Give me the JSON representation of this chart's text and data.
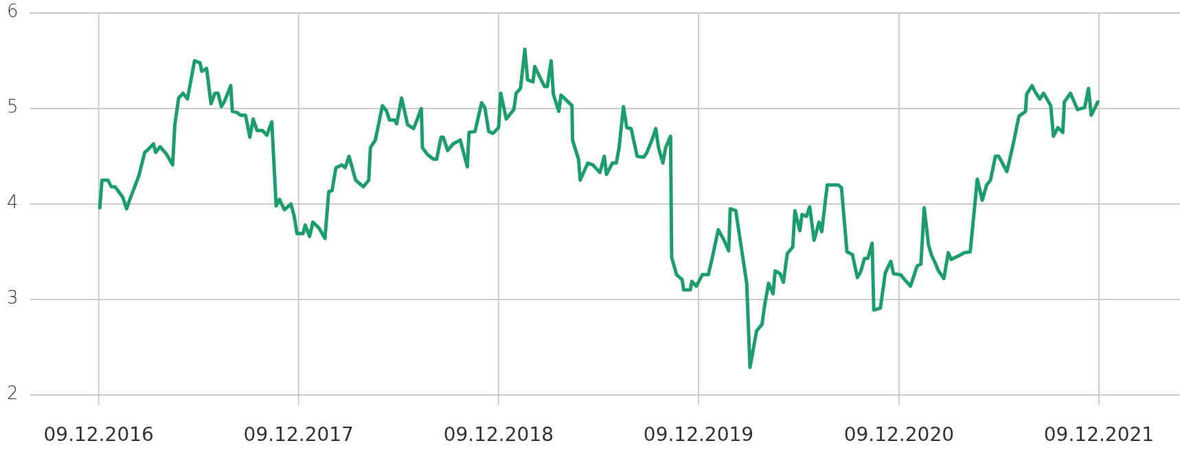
{
  "chart_data": {
    "type": "line",
    "grid": true,
    "marker": "none",
    "line_style": "solid",
    "xlim": [
      "2016-08-06",
      "2022-05-06"
    ],
    "xticks": [
      {
        "value": "2016-12-09",
        "label": "09.12.2016"
      },
      {
        "value": "2017-12-09",
        "label": "09.12.2017"
      },
      {
        "value": "2018-12-09",
        "label": "09.12.2018"
      },
      {
        "value": "2019-12-09",
        "label": "09.12.2019"
      },
      {
        "value": "2020-12-09",
        "label": "09.12.2020"
      },
      {
        "value": "2021-12-09",
        "label": "09.12.2021"
      }
    ],
    "ylim": [
      2,
      6
    ],
    "yticks": [
      2,
      3,
      4,
      5,
      6
    ],
    "series": [
      {
        "color": "#1c9e6c",
        "x": [
          "2016-12-11",
          "2016-12-15",
          "2016-12-26",
          "2017-01-01",
          "2017-01-08",
          "2017-01-22",
          "2017-01-29",
          "2017-02-04",
          "2017-02-20",
          "2017-03-03",
          "2017-03-09",
          "2017-03-19",
          "2017-03-23",
          "2017-03-31",
          "2017-04-12",
          "2017-04-23",
          "2017-04-27",
          "2017-05-04",
          "2017-05-12",
          "2017-05-20",
          "2017-06-02",
          "2017-06-12",
          "2017-06-15",
          "2017-06-24",
          "2017-07-02",
          "2017-07-09",
          "2017-07-15",
          "2017-07-21",
          "2017-07-27",
          "2017-08-07",
          "2017-08-10",
          "2017-08-18",
          "2017-08-25",
          "2017-09-03",
          "2017-09-11",
          "2017-09-17",
          "2017-09-24",
          "2017-10-04",
          "2017-10-12",
          "2017-10-21",
          "2017-10-29",
          "2017-11-04",
          "2017-11-13",
          "2017-11-25",
          "2017-12-01",
          "2017-12-06",
          "2017-12-17",
          "2017-12-21",
          "2017-12-29",
          "2018-01-04",
          "2018-01-15",
          "2018-01-26",
          "2018-02-02",
          "2018-02-08",
          "2018-02-15",
          "2018-02-26",
          "2018-03-04",
          "2018-03-11",
          "2018-03-23",
          "2018-04-06",
          "2018-04-16",
          "2018-04-19",
          "2018-04-28",
          "2018-05-11",
          "2018-05-18",
          "2018-05-24",
          "2018-06-02",
          "2018-06-06",
          "2018-06-15",
          "2018-06-26",
          "2018-07-07",
          "2018-07-21",
          "2018-07-23",
          "2018-08-01",
          "2018-08-12",
          "2018-08-18",
          "2018-08-26",
          "2018-08-30",
          "2018-09-07",
          "2018-09-17",
          "2018-09-30",
          "2018-10-13",
          "2018-10-16",
          "2018-10-27",
          "2018-11-08",
          "2018-11-14",
          "2018-11-21",
          "2018-11-29",
          "2018-12-09",
          "2018-12-13",
          "2018-12-23",
          "2019-01-06",
          "2019-01-10",
          "2019-01-18",
          "2019-01-26",
          "2019-01-31",
          "2019-02-10",
          "2019-02-13",
          "2019-03-03",
          "2019-03-08",
          "2019-03-15",
          "2019-03-19",
          "2019-03-29",
          "2019-04-02",
          "2019-04-13",
          "2019-04-22",
          "2019-04-23",
          "2019-05-04",
          "2019-05-07",
          "2019-05-21",
          "2019-05-30",
          "2019-06-12",
          "2019-06-20",
          "2019-06-24",
          "2019-07-05",
          "2019-07-12",
          "2019-07-17",
          "2019-07-25",
          "2019-07-31",
          "2019-08-08",
          "2019-08-19",
          "2019-08-31",
          "2019-09-05",
          "2019-09-15",
          "2019-09-22",
          "2019-09-27",
          "2019-10-05",
          "2019-10-10",
          "2019-10-19",
          "2019-10-21",
          "2019-10-30",
          "2019-11-09",
          "2019-11-12",
          "2019-11-24",
          "2019-11-27",
          "2019-12-05",
          "2019-12-16",
          "2019-12-27",
          "2020-01-04",
          "2020-01-14",
          "2020-01-24",
          "2020-02-02",
          "2020-02-05",
          "2020-02-15",
          "2020-03-06",
          "2020-03-12",
          "2020-03-24",
          "2020-04-03",
          "2020-04-08",
          "2020-04-15",
          "2020-04-23",
          "2020-04-27",
          "2020-05-06",
          "2020-05-12",
          "2020-05-19",
          "2020-05-29",
          "2020-06-02",
          "2020-06-11",
          "2020-06-15",
          "2020-06-23",
          "2020-06-29",
          "2020-07-07",
          "2020-07-16",
          "2020-07-21",
          "2020-07-31",
          "2020-08-20",
          "2020-08-26",
          "2020-09-05",
          "2020-09-15",
          "2020-09-24",
          "2020-09-30",
          "2020-10-07",
          "2020-10-13",
          "2020-10-21",
          "2020-10-24",
          "2020-11-05",
          "2020-11-14",
          "2020-11-24",
          "2020-11-29",
          "2020-12-12",
          "2020-12-19",
          "2020-12-30",
          "2021-01-11",
          "2021-01-18",
          "2021-01-24",
          "2021-02-01",
          "2021-02-06",
          "2021-02-14",
          "2021-02-19",
          "2021-03-01",
          "2021-03-09",
          "2021-03-14",
          "2021-03-29",
          "2021-04-07",
          "2021-04-18",
          "2021-05-01",
          "2021-05-10",
          "2021-05-18",
          "2021-05-25",
          "2021-06-03",
          "2021-06-09",
          "2021-06-24",
          "2021-07-06",
          "2021-07-16",
          "2021-07-28",
          "2021-07-30",
          "2021-08-09",
          "2021-08-14",
          "2021-08-23",
          "2021-08-30",
          "2021-09-12",
          "2021-09-17",
          "2021-09-25",
          "2021-10-04",
          "2021-10-07",
          "2021-10-18",
          "2021-10-31",
          "2021-11-13",
          "2021-11-20",
          "2021-11-25",
          "2021-12-07"
        ],
        "values": [
          3.96,
          4.25,
          4.25,
          4.18,
          4.18,
          4.07,
          3.95,
          4.05,
          4.29,
          4.54,
          4.57,
          4.63,
          4.54,
          4.6,
          4.52,
          4.41,
          4.83,
          5.11,
          5.16,
          5.1,
          5.5,
          5.48,
          5.39,
          5.42,
          5.05,
          5.16,
          5.16,
          5.02,
          5.08,
          5.24,
          4.97,
          4.96,
          4.93,
          4.93,
          4.7,
          4.89,
          4.77,
          4.77,
          4.72,
          4.86,
          3.98,
          4.05,
          3.94,
          4.0,
          3.87,
          3.69,
          3.69,
          3.78,
          3.66,
          3.81,
          3.75,
          3.64,
          4.13,
          4.14,
          4.38,
          4.41,
          4.38,
          4.5,
          4.25,
          4.18,
          4.25,
          4.59,
          4.67,
          5.03,
          4.98,
          4.88,
          4.88,
          4.84,
          5.11,
          4.83,
          4.79,
          5.0,
          4.59,
          4.52,
          4.47,
          4.47,
          4.7,
          4.7,
          4.56,
          4.63,
          4.67,
          4.39,
          4.75,
          4.76,
          5.06,
          5.01,
          4.76,
          4.74,
          4.8,
          5.16,
          4.89,
          4.99,
          5.16,
          5.21,
          5.62,
          5.3,
          5.28,
          5.44,
          5.23,
          5.23,
          5.5,
          5.15,
          4.97,
          5.14,
          5.08,
          5.03,
          4.67,
          4.47,
          4.25,
          4.43,
          4.41,
          4.33,
          4.5,
          4.31,
          4.43,
          4.43,
          4.59,
          5.02,
          4.8,
          4.79,
          4.5,
          4.49,
          4.53,
          4.67,
          4.79,
          4.59,
          4.43,
          4.59,
          4.71,
          3.44,
          3.26,
          3.21,
          3.1,
          3.1,
          3.19,
          3.14,
          3.26,
          3.26,
          3.46,
          3.73,
          3.63,
          3.51,
          3.95,
          3.93,
          3.17,
          2.29,
          2.67,
          2.74,
          2.95,
          3.17,
          3.06,
          3.3,
          3.27,
          3.18,
          3.48,
          3.55,
          3.93,
          3.72,
          3.89,
          3.87,
          3.97,
          3.62,
          3.81,
          3.71,
          4.2,
          4.2,
          4.17,
          3.5,
          3.47,
          3.23,
          3.29,
          3.43,
          3.43,
          3.59,
          2.89,
          2.91,
          3.28,
          3.4,
          3.27,
          3.26,
          3.21,
          3.14,
          3.35,
          3.37,
          3.96,
          3.57,
          3.47,
          3.37,
          3.3,
          3.22,
          3.49,
          3.42,
          3.46,
          3.49,
          3.5,
          4.26,
          4.04,
          4.2,
          4.25,
          4.5,
          4.5,
          4.34,
          4.64,
          4.92,
          4.97,
          5.15,
          5.24,
          5.18,
          5.1,
          5.16,
          5.03,
          4.71,
          4.8,
          4.75,
          5.07,
          5.16,
          4.99,
          5.01,
          5.21,
          4.93,
          5.07
        ]
      }
    ]
  }
}
